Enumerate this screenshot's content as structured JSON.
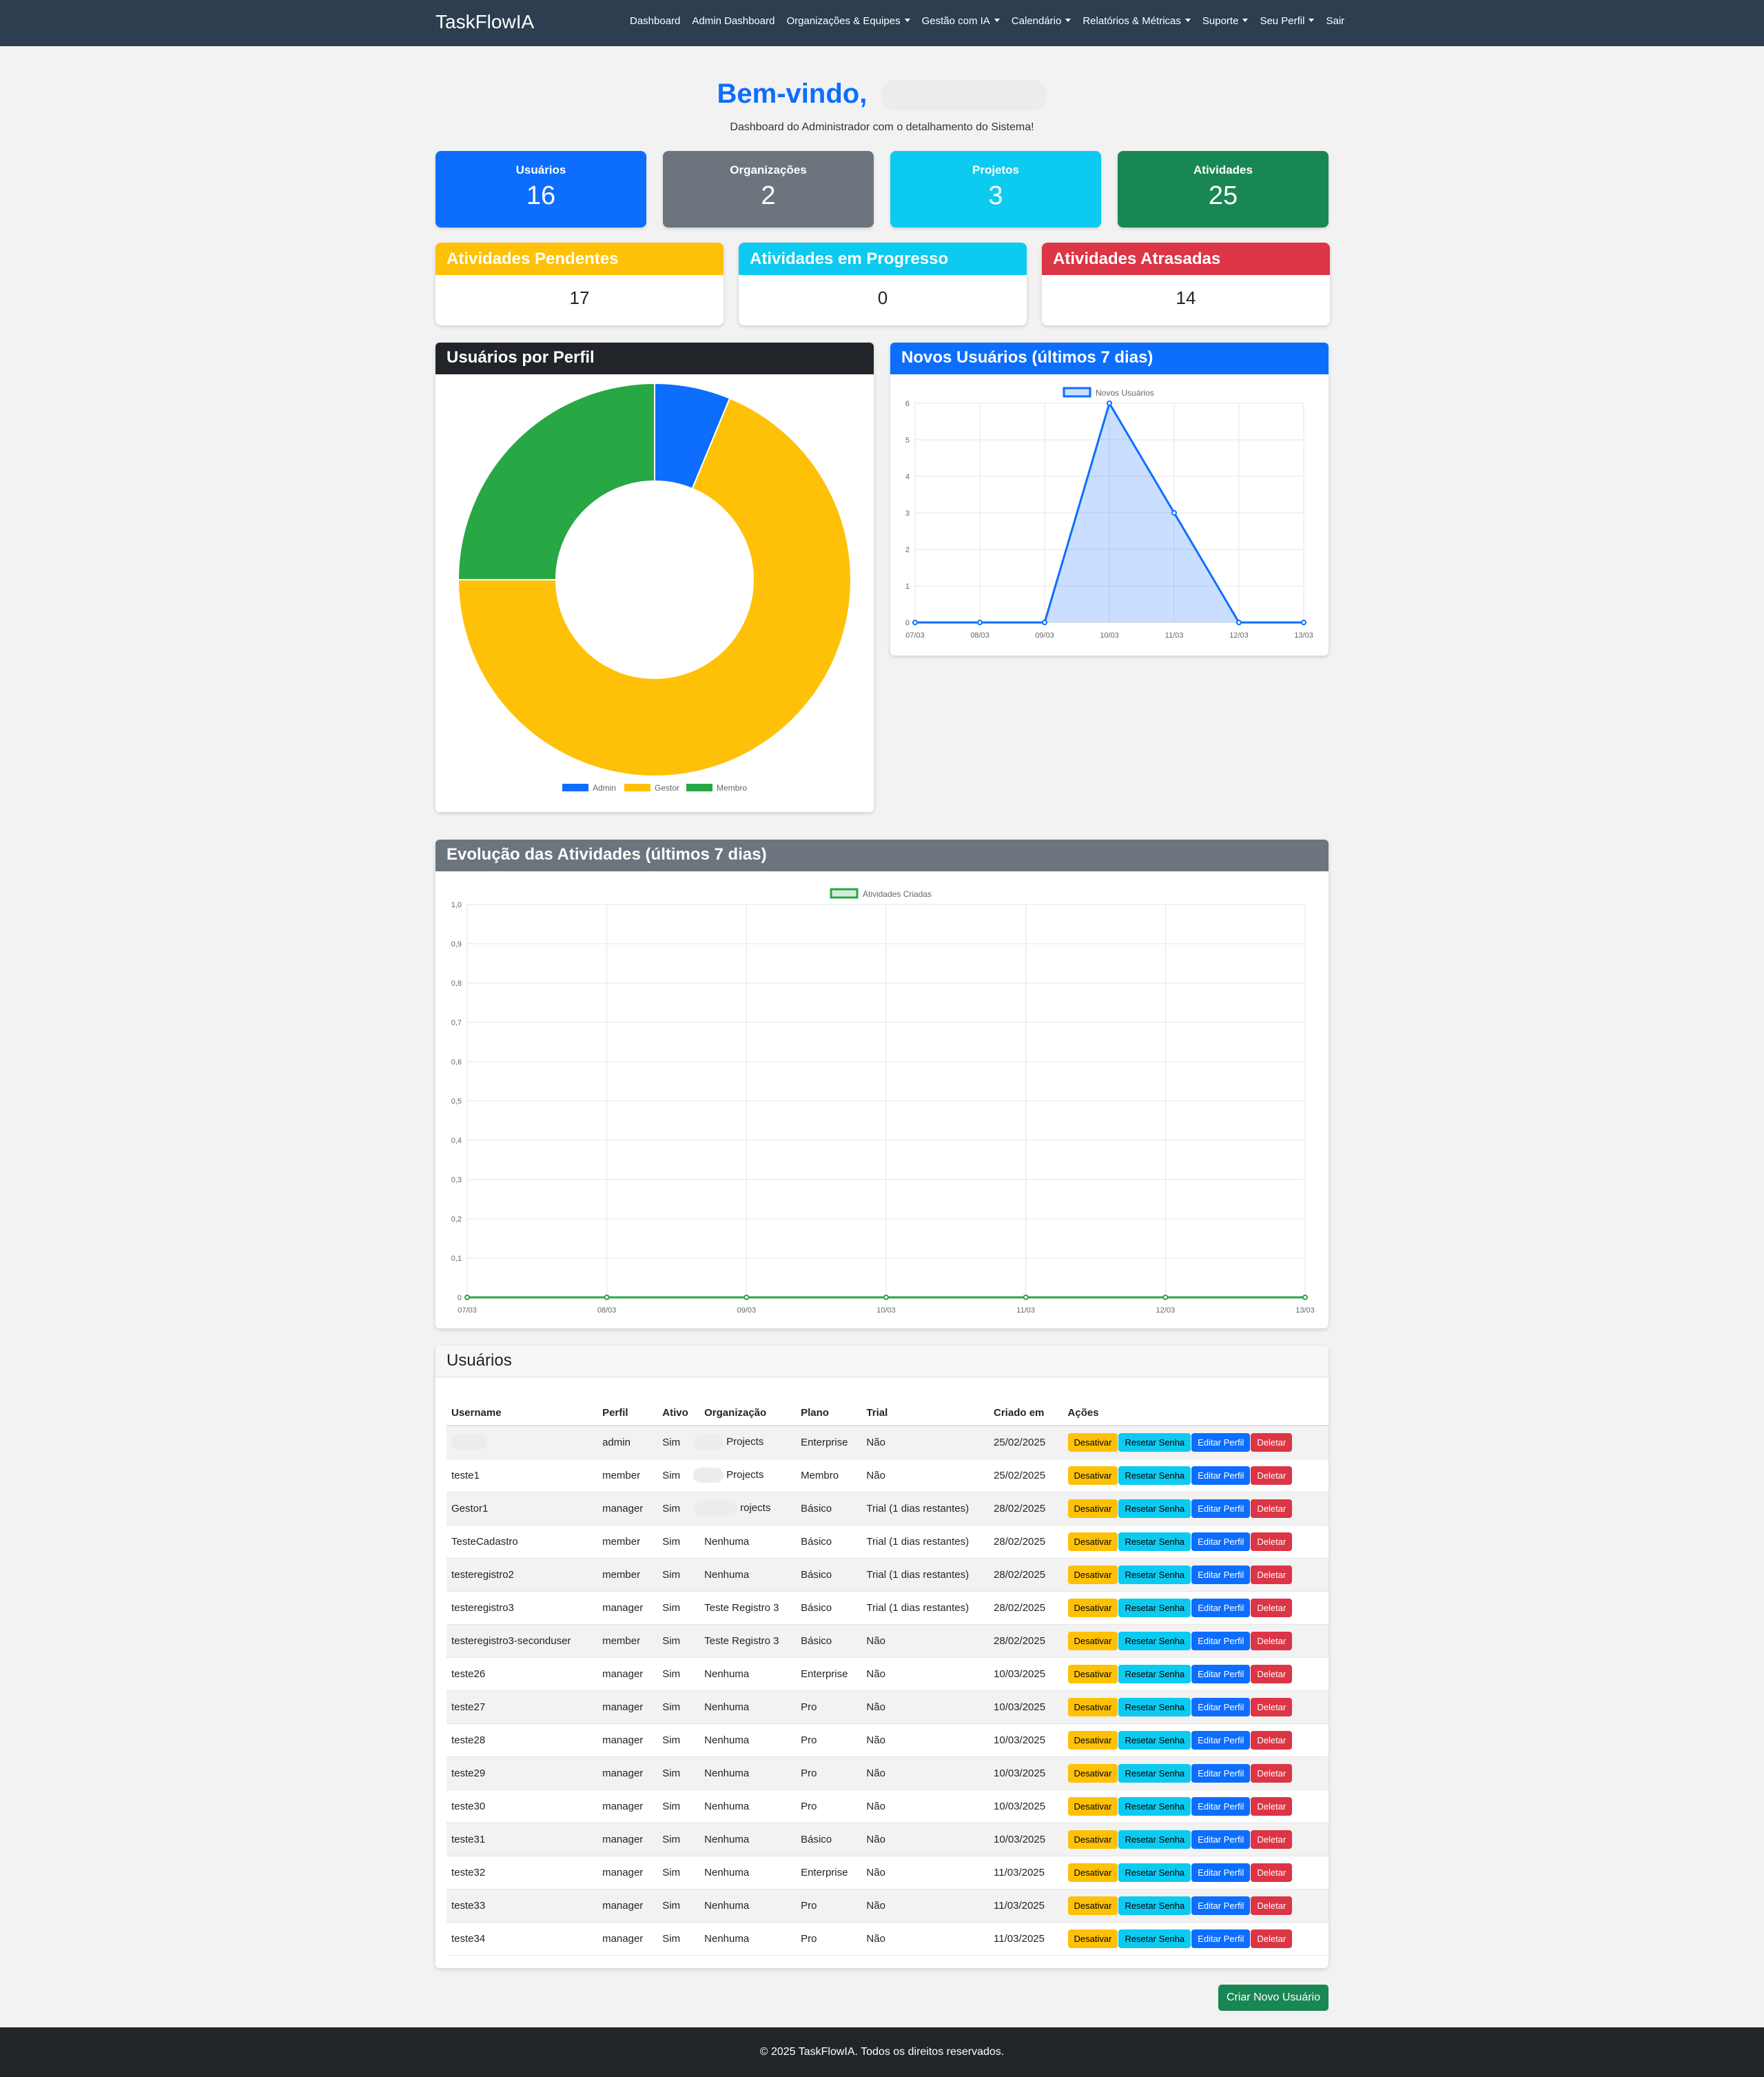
{
  "navbar": {
    "brand": "TaskFlowIA",
    "items": [
      {
        "label": "Dashboard",
        "dropdown": false
      },
      {
        "label": "Admin Dashboard",
        "dropdown": false
      },
      {
        "label": "Organizações & Equipes",
        "dropdown": true
      },
      {
        "label": "Gestão com IA",
        "dropdown": true
      },
      {
        "label": "Calendário",
        "dropdown": true
      },
      {
        "label": "Relatórios & Métricas",
        "dropdown": true
      },
      {
        "label": "Suporte",
        "dropdown": true
      },
      {
        "label": "Seu Perfil",
        "dropdown": true
      },
      {
        "label": "Sair",
        "dropdown": false
      }
    ]
  },
  "header": {
    "welcome": "Bem-vindo,",
    "subtitle": "Dashboard do Administrador com o detalhamento do Sistema!"
  },
  "stats": [
    {
      "title": "Usuários",
      "value": "16",
      "color": "#0d6efd"
    },
    {
      "title": "Organizações",
      "value": "2",
      "color": "#6c757d"
    },
    {
      "title": "Projetos",
      "value": "3",
      "color": "#0dcaf0"
    },
    {
      "title": "Atividades",
      "value": "25",
      "color": "#198754"
    }
  ],
  "activity_cards": [
    {
      "title": "Atividades Pendentes",
      "value": "17",
      "color": "#ffc107"
    },
    {
      "title": "Atividades em Progresso",
      "value": "0",
      "color": "#0dcaf0"
    },
    {
      "title": "Atividades Atrasadas",
      "value": "14",
      "color": "#dc3545"
    }
  ],
  "panels": {
    "profile_title": "Usuários por Perfil",
    "new_users_title": "Novos Usuários (últimos 7 dias)",
    "evolution_title": "Evolução das Atividades (últimos 7 dias)",
    "users_title": "Usuários"
  },
  "chart_data": [
    {
      "type": "pie",
      "title": "Usuários por Perfil",
      "categories": [
        "Admin",
        "Gestor",
        "Membro"
      ],
      "values": [
        1,
        11,
        4
      ],
      "colors": [
        "#0d6efd",
        "#ffc107",
        "#28a745"
      ],
      "legend": "bottom"
    },
    {
      "type": "area",
      "title": "Novos Usuários (últimos 7 dias)",
      "x": [
        "07/03",
        "08/03",
        "09/03",
        "10/03",
        "11/03",
        "12/03",
        "13/03"
      ],
      "series": [
        {
          "name": "Novos Usuários",
          "values": [
            0,
            0,
            0,
            6,
            3,
            0,
            0
          ],
          "color": "#0d6efd"
        }
      ],
      "yticks": [
        "0",
        "1",
        "2",
        "3",
        "4",
        "5",
        "6"
      ],
      "ylim": [
        0,
        6
      ],
      "grid": true,
      "legend": "top"
    },
    {
      "type": "line",
      "title": "Evolução das Atividades (últimos 7 dias)",
      "x": [
        "07/03",
        "08/03",
        "09/03",
        "10/03",
        "11/03",
        "12/03",
        "13/03"
      ],
      "series": [
        {
          "name": "Atividades Criadas",
          "values": [
            0,
            0,
            0,
            0,
            0,
            0,
            0
          ],
          "color": "#28a745"
        }
      ],
      "yticks": [
        "0",
        "0,1",
        "0,2",
        "0,3",
        "0,4",
        "0,5",
        "0,6",
        "0,7",
        "0,8",
        "0,9",
        "1,0"
      ],
      "ylim": [
        0,
        1
      ],
      "grid": true,
      "legend": "top"
    }
  ],
  "users_table": {
    "columns": [
      "Username",
      "Perfil",
      "Ativo",
      "Organização",
      "Plano",
      "Trial",
      "Criado em",
      "Ações"
    ],
    "actions": {
      "deactivate": "Desativar",
      "reset": "Resetar Senha",
      "edit": "Editar Perfil",
      "delete": "Deletar"
    },
    "rows": [
      {
        "username": "",
        "perfil": "admin",
        "ativo": "Sim",
        "org": "Projects",
        "plano": "Enterprise",
        "trial": "Não",
        "criado": "25/02/2025"
      },
      {
        "username": "teste1",
        "perfil": "member",
        "ativo": "Sim",
        "org": "Projects",
        "plano": "Membro",
        "trial": "Não",
        "criado": "25/02/2025"
      },
      {
        "username": "Gestor1",
        "perfil": "manager",
        "ativo": "Sim",
        "org": "rojects",
        "plano": "Básico",
        "trial": "Trial (1 dias restantes)",
        "criado": "28/02/2025"
      },
      {
        "username": "TesteCadastro",
        "perfil": "member",
        "ativo": "Sim",
        "org": "Nenhuma",
        "plano": "Básico",
        "trial": "Trial (1 dias restantes)",
        "criado": "28/02/2025"
      },
      {
        "username": "testeregistro2",
        "perfil": "member",
        "ativo": "Sim",
        "org": "Nenhuma",
        "plano": "Básico",
        "trial": "Trial (1 dias restantes)",
        "criado": "28/02/2025"
      },
      {
        "username": "testeregistro3",
        "perfil": "manager",
        "ativo": "Sim",
        "org": "Teste Registro 3",
        "plano": "Básico",
        "trial": "Trial (1 dias restantes)",
        "criado": "28/02/2025"
      },
      {
        "username": "testeregistro3-seconduser",
        "perfil": "member",
        "ativo": "Sim",
        "org": "Teste Registro 3",
        "plano": "Básico",
        "trial": "Não",
        "criado": "28/02/2025"
      },
      {
        "username": "teste26",
        "perfil": "manager",
        "ativo": "Sim",
        "org": "Nenhuma",
        "plano": "Enterprise",
        "trial": "Não",
        "criado": "10/03/2025"
      },
      {
        "username": "teste27",
        "perfil": "manager",
        "ativo": "Sim",
        "org": "Nenhuma",
        "plano": "Pro",
        "trial": "Não",
        "criado": "10/03/2025"
      },
      {
        "username": "teste28",
        "perfil": "manager",
        "ativo": "Sim",
        "org": "Nenhuma",
        "plano": "Pro",
        "trial": "Não",
        "criado": "10/03/2025"
      },
      {
        "username": "teste29",
        "perfil": "manager",
        "ativo": "Sim",
        "org": "Nenhuma",
        "plano": "Pro",
        "trial": "Não",
        "criado": "10/03/2025"
      },
      {
        "username": "teste30",
        "perfil": "manager",
        "ativo": "Sim",
        "org": "Nenhuma",
        "plano": "Pro",
        "trial": "Não",
        "criado": "10/03/2025"
      },
      {
        "username": "teste31",
        "perfil": "manager",
        "ativo": "Sim",
        "org": "Nenhuma",
        "plano": "Básico",
        "trial": "Não",
        "criado": "10/03/2025"
      },
      {
        "username": "teste32",
        "perfil": "manager",
        "ativo": "Sim",
        "org": "Nenhuma",
        "plano": "Enterprise",
        "trial": "Não",
        "criado": "11/03/2025"
      },
      {
        "username": "teste33",
        "perfil": "manager",
        "ativo": "Sim",
        "org": "Nenhuma",
        "plano": "Pro",
        "trial": "Não",
        "criado": "11/03/2025"
      },
      {
        "username": "teste34",
        "perfil": "manager",
        "ativo": "Sim",
        "org": "Nenhuma",
        "plano": "Pro",
        "trial": "Não",
        "criado": "11/03/2025"
      }
    ]
  },
  "create_button": "Criar Novo Usuário",
  "footer": "© 2025 TaskFlowIA. Todos os direitos reservados."
}
